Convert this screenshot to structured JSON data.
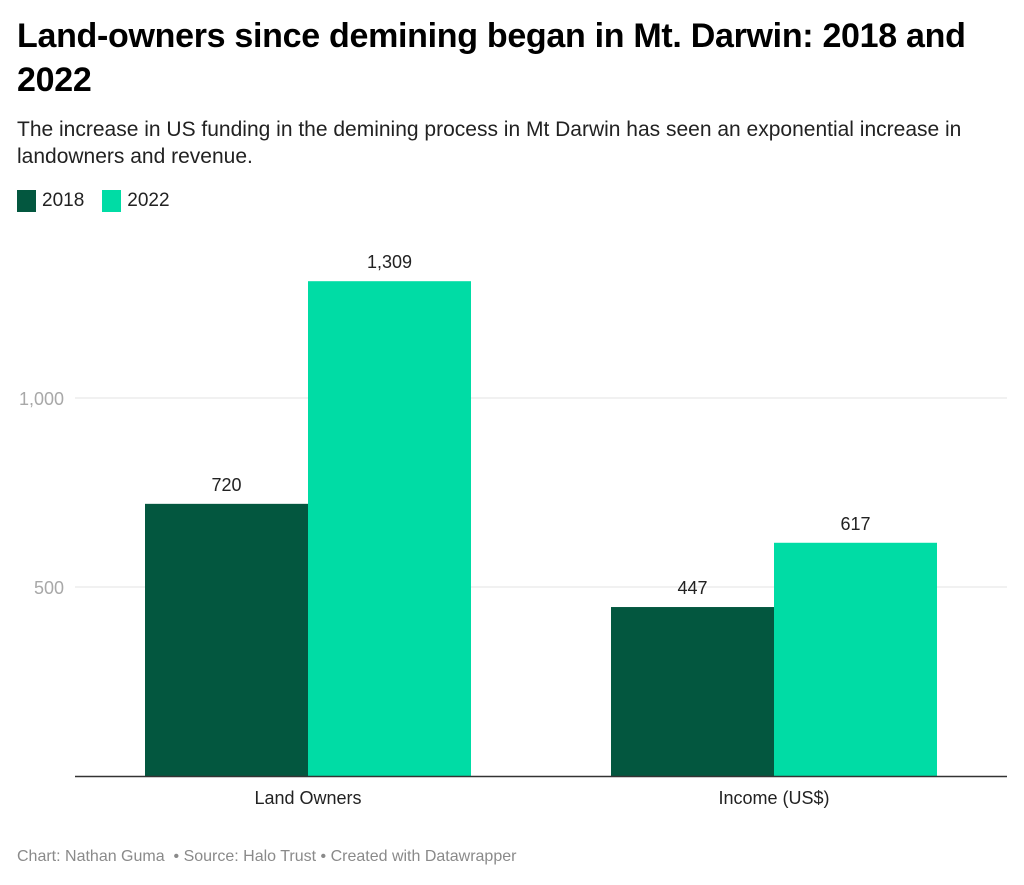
{
  "chart_data": {
    "type": "bar",
    "title": "Land-owners since demining began in Mt. Darwin: 2018 and 2022",
    "subtitle": "The increase in US funding in the demining process in Mt Darwin has seen an exponential increase in landowners and revenue.",
    "categories": [
      "Land Owners",
      "Income (US$)"
    ],
    "series": [
      {
        "name": "2018",
        "color": "#03573f",
        "values": [
          720,
          447
        ],
        "labels": [
          "720",
          "447"
        ]
      },
      {
        "name": "2022",
        "color": "#00dca5",
        "values": [
          1309,
          617
        ],
        "labels": [
          "1,309",
          "617"
        ]
      }
    ],
    "xlabel": "",
    "ylabel": "",
    "ylim": [
      0,
      1309
    ],
    "yticks": [
      500,
      1000
    ],
    "ytick_labels": [
      "500",
      "1,000"
    ],
    "grid": true,
    "legend": "top-left"
  },
  "footer": {
    "chart_credit": "Chart: Nathan Guma",
    "separator": " • ",
    "source": "Source: Halo Trust",
    "created_with": "Created with Datawrapper"
  }
}
